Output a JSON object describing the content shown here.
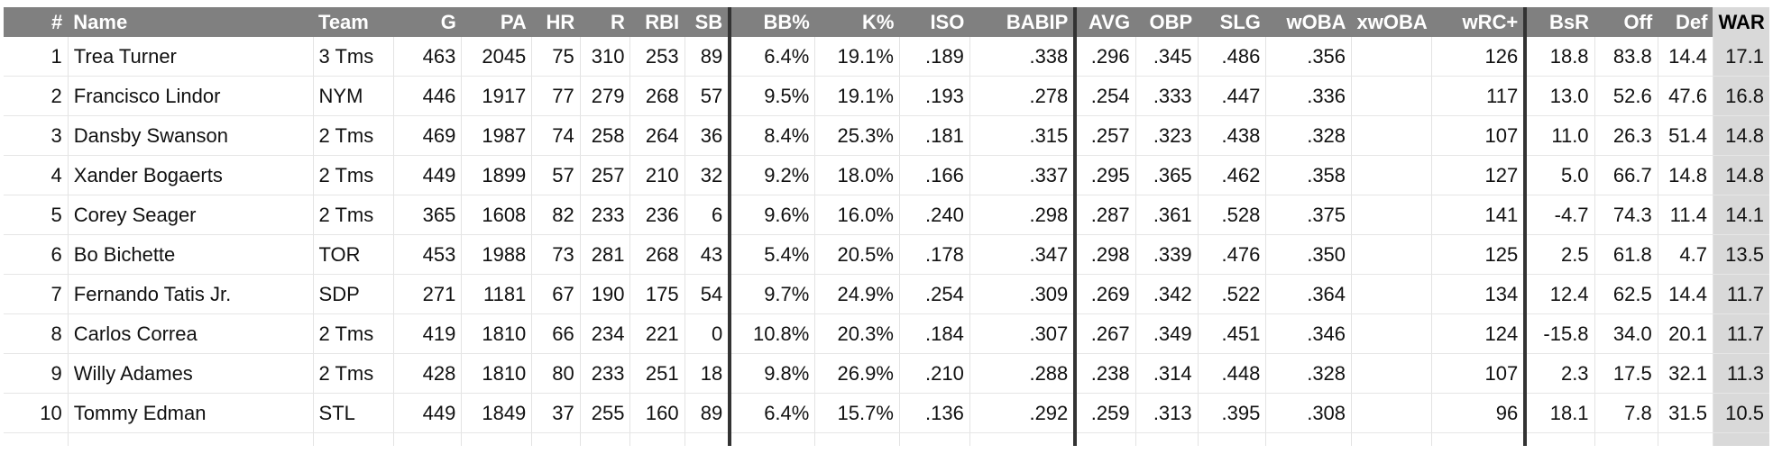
{
  "table": {
    "columns": [
      "#",
      "Name",
      "Team",
      "G",
      "PA",
      "HR",
      "R",
      "RBI",
      "SB",
      "BB%",
      "K%",
      "ISO",
      "BABIP",
      "AVG",
      "OBP",
      "SLG",
      "wOBA",
      "xwOBA",
      "wRC+",
      "BsR",
      "Off",
      "Def",
      "WAR"
    ],
    "rows": [
      [
        "1",
        "Trea Turner",
        "3 Tms",
        "463",
        "2045",
        "75",
        "310",
        "253",
        "89",
        "6.4%",
        "19.1%",
        ".189",
        ".338",
        ".296",
        ".345",
        ".486",
        ".356",
        "",
        "126",
        "18.8",
        "83.8",
        "14.4",
        "17.1"
      ],
      [
        "2",
        "Francisco Lindor",
        "NYM",
        "446",
        "1917",
        "77",
        "279",
        "268",
        "57",
        "9.5%",
        "19.1%",
        ".193",
        ".278",
        ".254",
        ".333",
        ".447",
        ".336",
        "",
        "117",
        "13.0",
        "52.6",
        "47.6",
        "16.8"
      ],
      [
        "3",
        "Dansby Swanson",
        "2 Tms",
        "469",
        "1987",
        "74",
        "258",
        "264",
        "36",
        "8.4%",
        "25.3%",
        ".181",
        ".315",
        ".257",
        ".323",
        ".438",
        ".328",
        "",
        "107",
        "11.0",
        "26.3",
        "51.4",
        "14.8"
      ],
      [
        "4",
        "Xander Bogaerts",
        "2 Tms",
        "449",
        "1899",
        "57",
        "257",
        "210",
        "32",
        "9.2%",
        "18.0%",
        ".166",
        ".337",
        ".295",
        ".365",
        ".462",
        ".358",
        "",
        "127",
        "5.0",
        "66.7",
        "14.8",
        "14.8"
      ],
      [
        "5",
        "Corey Seager",
        "2 Tms",
        "365",
        "1608",
        "82",
        "233",
        "236",
        "6",
        "9.6%",
        "16.0%",
        ".240",
        ".298",
        ".287",
        ".361",
        ".528",
        ".375",
        "",
        "141",
        "-4.7",
        "74.3",
        "11.4",
        "14.1"
      ],
      [
        "6",
        "Bo Bichette",
        "TOR",
        "453",
        "1988",
        "73",
        "281",
        "268",
        "43",
        "5.4%",
        "20.5%",
        ".178",
        ".347",
        ".298",
        ".339",
        ".476",
        ".350",
        "",
        "125",
        "2.5",
        "61.8",
        "4.7",
        "13.5"
      ],
      [
        "7",
        "Fernando Tatis Jr.",
        "SDP",
        "271",
        "1181",
        "67",
        "190",
        "175",
        "54",
        "9.7%",
        "24.9%",
        ".254",
        ".309",
        ".269",
        ".342",
        ".522",
        ".364",
        "",
        "134",
        "12.4",
        "62.5",
        "14.4",
        "11.7"
      ],
      [
        "8",
        "Carlos Correa",
        "2 Tms",
        "419",
        "1810",
        "66",
        "234",
        "221",
        "0",
        "10.8%",
        "20.3%",
        ".184",
        ".307",
        ".267",
        ".349",
        ".451",
        ".346",
        "",
        "124",
        "-15.8",
        "34.0",
        "20.1",
        "11.7"
      ],
      [
        "9",
        "Willy Adames",
        "2 Tms",
        "428",
        "1810",
        "80",
        "233",
        "251",
        "18",
        "9.8%",
        "26.9%",
        ".210",
        ".288",
        ".238",
        ".314",
        ".448",
        ".328",
        "",
        "107",
        "2.3",
        "17.5",
        "32.1",
        "11.3"
      ],
      [
        "10",
        "Tommy Edman",
        "STL",
        "449",
        "1849",
        "37",
        "255",
        "160",
        "89",
        "6.4%",
        "15.7%",
        ".136",
        ".292",
        ".259",
        ".313",
        ".395",
        ".308",
        "",
        "96",
        "18.1",
        "7.8",
        "31.5",
        "10.5"
      ]
    ]
  },
  "colors": {
    "header_bg": "#808080",
    "header_text": "#ffffff",
    "war_bg": "#d9d9d9",
    "separator": "#333333"
  }
}
